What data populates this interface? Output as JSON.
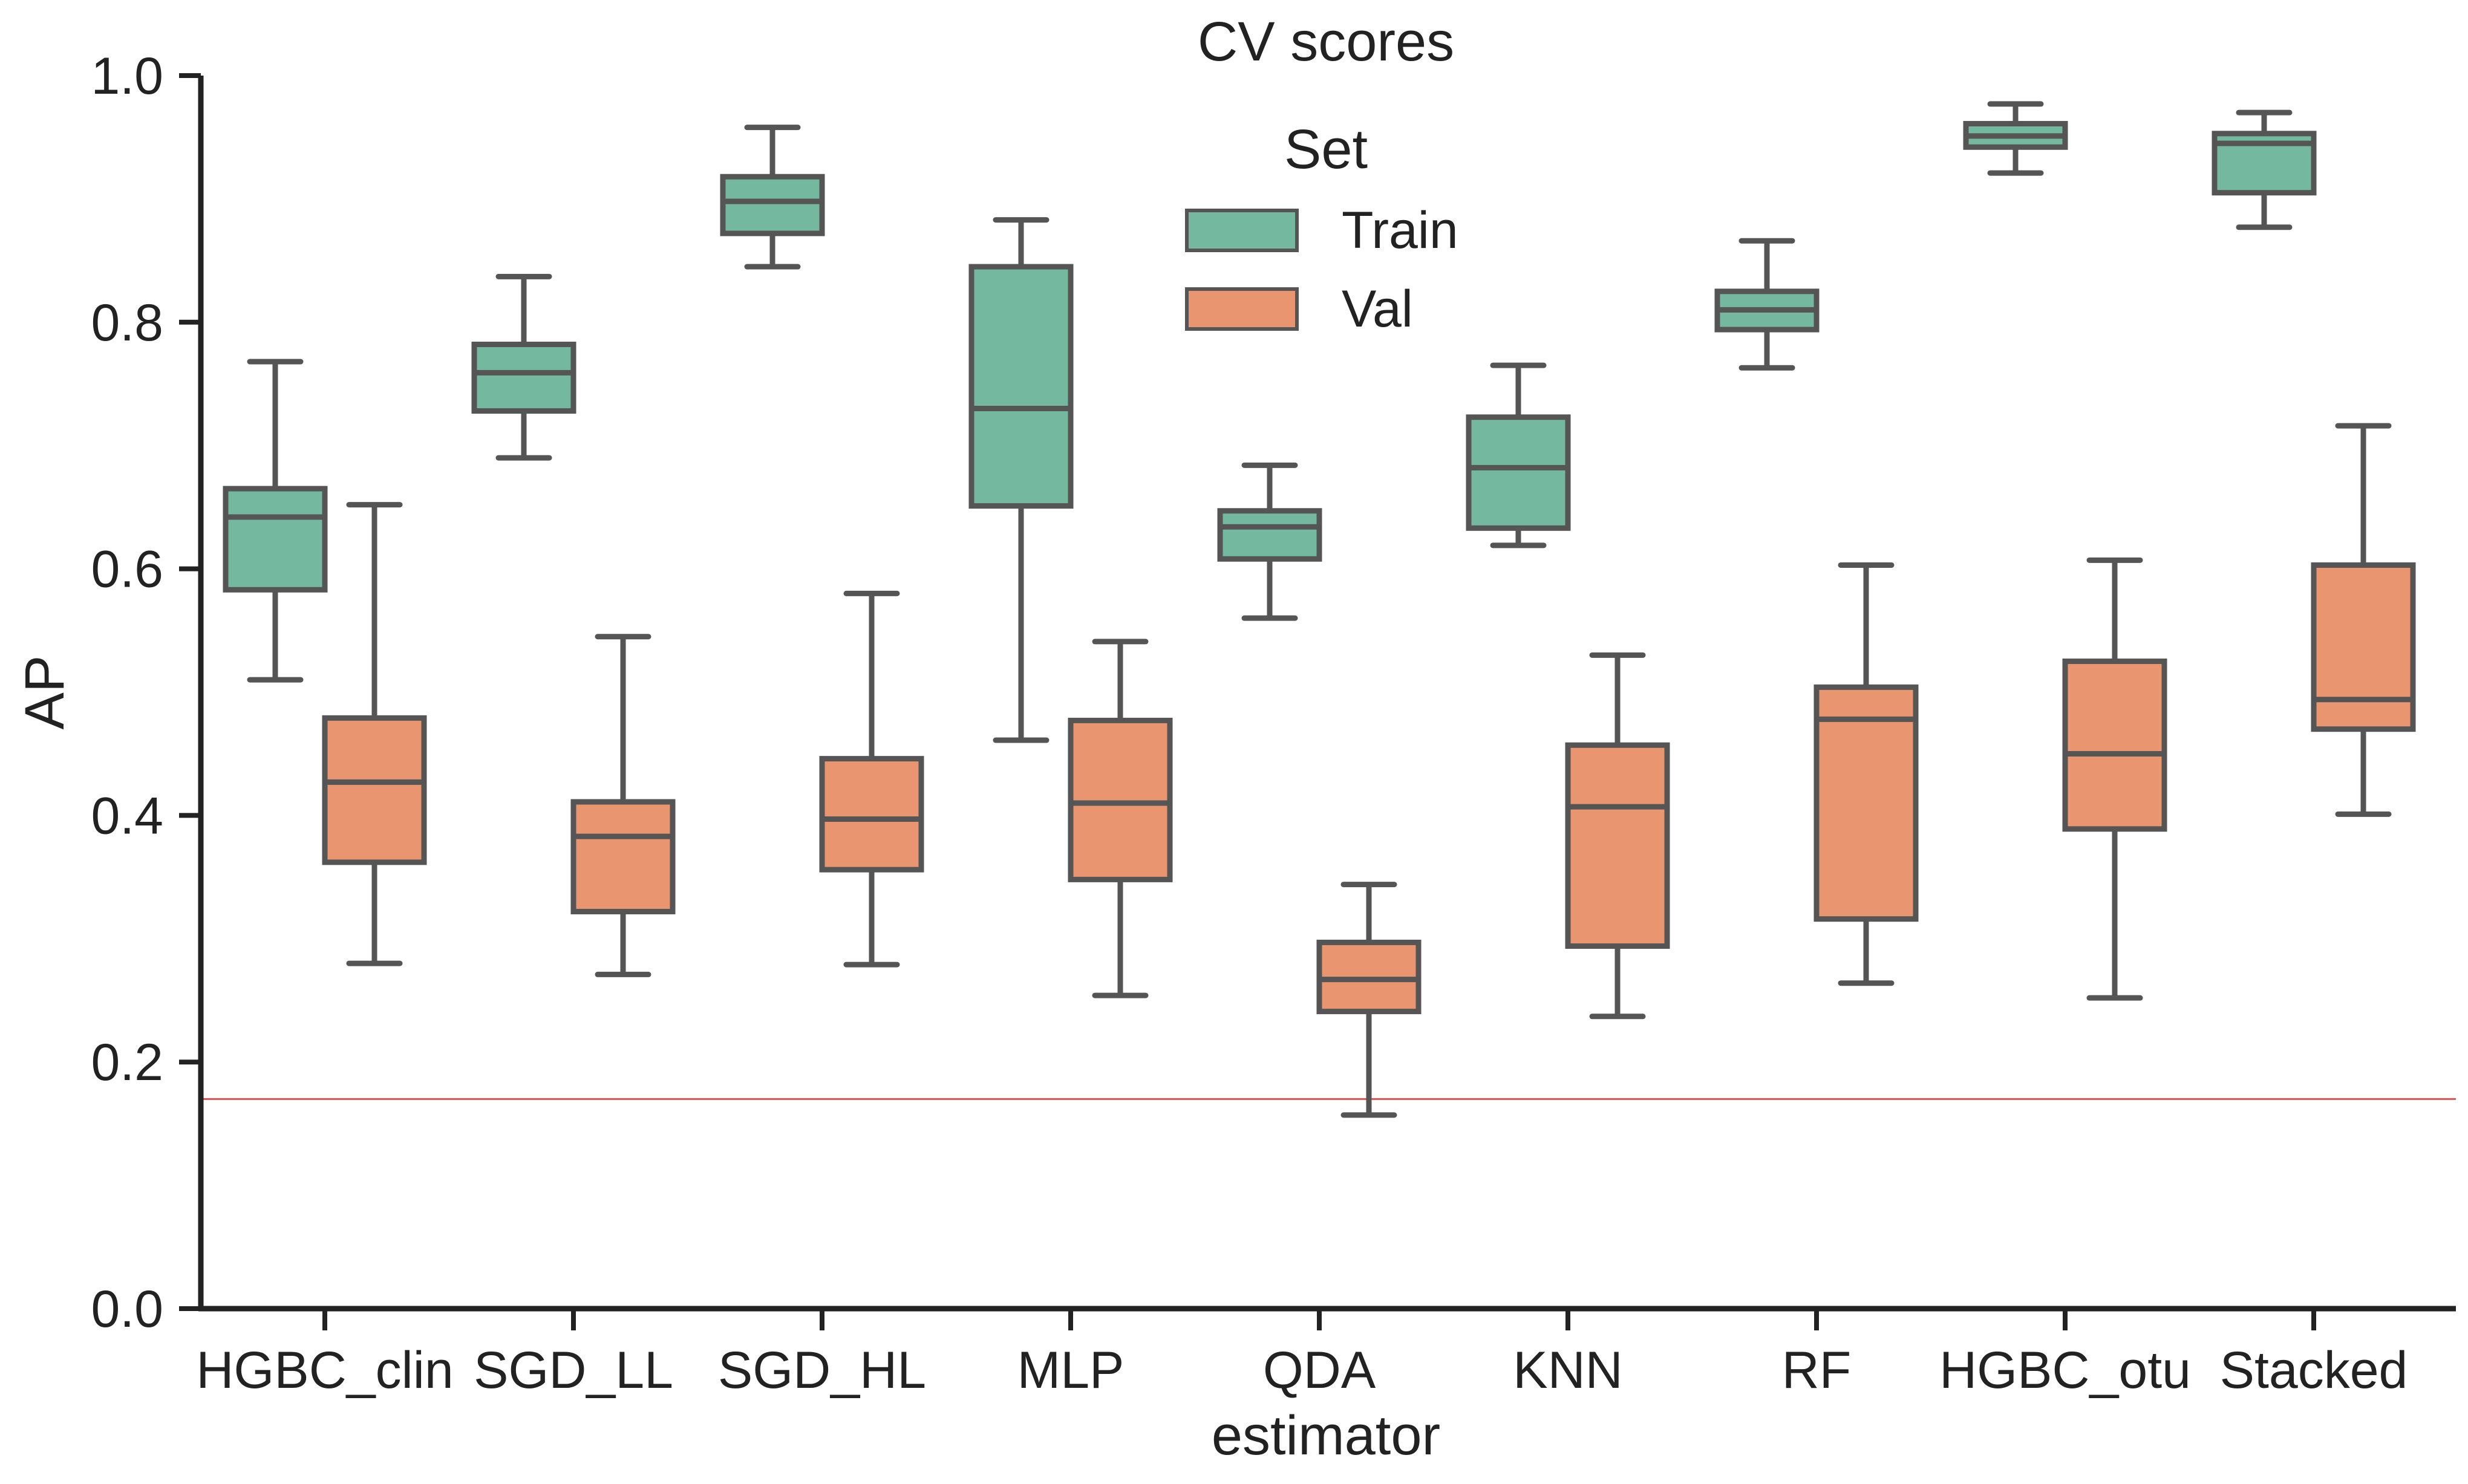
{
  "chart_data": {
    "type": "box",
    "title": "CV scores",
    "xlabel": "estimator",
    "ylabel": "AP",
    "ylim": [
      0.0,
      1.0
    ],
    "yticks": [
      "0.0",
      "0.2",
      "0.4",
      "0.6",
      "0.8",
      "1.0"
    ],
    "categories": [
      "HGBC_clin",
      "SGD_LL",
      "SGD_HL",
      "MLP",
      "QDA",
      "KNN",
      "RF",
      "HGBC_otu",
      "Stacked"
    ],
    "legend": {
      "title": "Set",
      "placement": "top-center"
    },
    "baseline": {
      "value": 0.17,
      "color": "#d9534f"
    },
    "colors": {
      "Train": "#75b8a0",
      "Val": "#e9956f",
      "edge": "#555555"
    },
    "series": [
      {
        "name": "Train",
        "boxes": [
          {
            "min": 0.51,
            "q1": 0.583,
            "median": 0.642,
            "q3": 0.665,
            "max": 0.768
          },
          {
            "min": 0.69,
            "q1": 0.728,
            "median": 0.759,
            "q3": 0.782,
            "max": 0.837
          },
          {
            "min": 0.845,
            "q1": 0.872,
            "median": 0.898,
            "q3": 0.918,
            "max": 0.958
          },
          {
            "min": 0.461,
            "q1": 0.651,
            "median": 0.73,
            "q3": 0.845,
            "max": 0.883
          },
          {
            "min": 0.56,
            "q1": 0.608,
            "median": 0.634,
            "q3": 0.647,
            "max": 0.684
          },
          {
            "min": 0.619,
            "q1": 0.633,
            "median": 0.682,
            "q3": 0.723,
            "max": 0.765
          },
          {
            "min": 0.763,
            "q1": 0.794,
            "median": 0.81,
            "q3": 0.825,
            "max": 0.866
          },
          {
            "min": 0.921,
            "q1": 0.942,
            "median": 0.951,
            "q3": 0.961,
            "max": 0.977
          },
          {
            "min": 0.877,
            "q1": 0.905,
            "median": 0.945,
            "q3": 0.953,
            "max": 0.97
          }
        ]
      },
      {
        "name": "Val",
        "boxes": [
          {
            "min": 0.28,
            "q1": 0.362,
            "median": 0.427,
            "q3": 0.479,
            "max": 0.652
          },
          {
            "min": 0.271,
            "q1": 0.322,
            "median": 0.383,
            "q3": 0.411,
            "max": 0.545
          },
          {
            "min": 0.279,
            "q1": 0.356,
            "median": 0.397,
            "q3": 0.446,
            "max": 0.58
          },
          {
            "min": 0.254,
            "q1": 0.348,
            "median": 0.41,
            "q3": 0.477,
            "max": 0.541
          },
          {
            "min": 0.157,
            "q1": 0.241,
            "median": 0.267,
            "q3": 0.297,
            "max": 0.344
          },
          {
            "min": 0.237,
            "q1": 0.294,
            "median": 0.407,
            "q3": 0.457,
            "max": 0.53
          },
          {
            "min": 0.264,
            "q1": 0.316,
            "median": 0.478,
            "q3": 0.504,
            "max": 0.603
          },
          {
            "min": 0.252,
            "q1": 0.389,
            "median": 0.45,
            "q3": 0.525,
            "max": 0.607
          },
          {
            "min": 0.401,
            "q1": 0.47,
            "median": 0.494,
            "q3": 0.603,
            "max": 0.716
          }
        ]
      }
    ]
  }
}
